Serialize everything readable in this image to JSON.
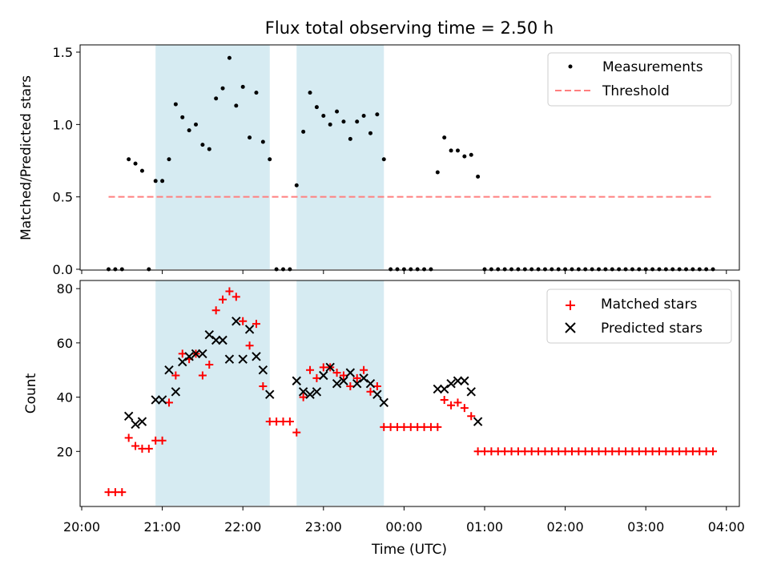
{
  "chart_data": [
    {
      "type": "scatter",
      "title": "Flux total observing time = 2.50 h",
      "xlabel": "",
      "ylabel": "Matched/Predicted stars",
      "xlim": [
        "20:00",
        "04:05"
      ],
      "ylim": [
        0,
        1.55
      ],
      "yticks": [
        0.0,
        0.5,
        1.0,
        1.5
      ],
      "yticklabels": [
        "0.0",
        "0.5",
        "1.0",
        "1.5"
      ],
      "shaded_intervals": [
        [
          "20:55",
          "22:20"
        ],
        [
          "22:40",
          "23:45"
        ]
      ],
      "shade_color": "#add8e6",
      "legend_position": "top-right",
      "series": [
        {
          "name": "Measurements",
          "marker": "dot",
          "color": "#000000",
          "points": [
            [
              "20:20",
              0
            ],
            [
              "20:25",
              0
            ],
            [
              "20:30",
              0
            ],
            [
              "20:35",
              0.76
            ],
            [
              "20:40",
              0.73
            ],
            [
              "20:45",
              0.68
            ],
            [
              "20:50",
              0
            ],
            [
              "20:55",
              0.61
            ],
            [
              "21:00",
              0.61
            ],
            [
              "21:05",
              0.76
            ],
            [
              "21:10",
              1.14
            ],
            [
              "21:15",
              1.05
            ],
            [
              "21:20",
              0.96
            ],
            [
              "21:25",
              1.0
            ],
            [
              "21:30",
              0.86
            ],
            [
              "21:35",
              0.83
            ],
            [
              "21:40",
              1.18
            ],
            [
              "21:45",
              1.25
            ],
            [
              "21:50",
              1.46
            ],
            [
              "21:55",
              1.13
            ],
            [
              "22:00",
              1.26
            ],
            [
              "22:05",
              0.91
            ],
            [
              "22:10",
              1.22
            ],
            [
              "22:15",
              0.88
            ],
            [
              "22:20",
              0.76
            ],
            [
              "22:25",
              0
            ],
            [
              "22:30",
              0
            ],
            [
              "22:35",
              0
            ],
            [
              "22:40",
              0.58
            ],
            [
              "22:45",
              0.95
            ],
            [
              "22:50",
              1.22
            ],
            [
              "22:55",
              1.12
            ],
            [
              "23:00",
              1.06
            ],
            [
              "23:05",
              1.0
            ],
            [
              "23:10",
              1.09
            ],
            [
              "23:15",
              1.02
            ],
            [
              "23:20",
              0.9
            ],
            [
              "23:25",
              1.02
            ],
            [
              "23:30",
              1.06
            ],
            [
              "23:35",
              0.94
            ],
            [
              "23:40",
              1.07
            ],
            [
              "23:45",
              0.76
            ],
            [
              "23:50",
              0
            ],
            [
              "23:55",
              0
            ],
            [
              "00:00",
              0
            ],
            [
              "00:05",
              0
            ],
            [
              "00:10",
              0
            ],
            [
              "00:15",
              0
            ],
            [
              "00:20",
              0
            ],
            [
              "00:25",
              0.67
            ],
            [
              "00:30",
              0.91
            ],
            [
              "00:35",
              0.82
            ],
            [
              "00:40",
              0.82
            ],
            [
              "00:45",
              0.78
            ],
            [
              "00:50",
              0.79
            ],
            [
              "00:55",
              0.64
            ],
            [
              "01:00",
              0
            ],
            [
              "01:05",
              0
            ],
            [
              "01:10",
              0
            ],
            [
              "01:15",
              0
            ],
            [
              "01:20",
              0
            ],
            [
              "01:25",
              0
            ],
            [
              "01:30",
              0
            ],
            [
              "01:35",
              0
            ],
            [
              "01:40",
              0
            ],
            [
              "01:45",
              0
            ],
            [
              "01:50",
              0
            ],
            [
              "01:55",
              0
            ],
            [
              "02:00",
              0
            ],
            [
              "02:05",
              0
            ],
            [
              "02:10",
              0
            ],
            [
              "02:15",
              0
            ],
            [
              "02:20",
              0
            ],
            [
              "02:25",
              0
            ],
            [
              "02:30",
              0
            ],
            [
              "02:35",
              0
            ],
            [
              "02:40",
              0
            ],
            [
              "02:45",
              0
            ],
            [
              "02:50",
              0
            ],
            [
              "02:55",
              0
            ],
            [
              "03:00",
              0
            ],
            [
              "03:05",
              0
            ],
            [
              "03:10",
              0
            ],
            [
              "03:15",
              0
            ],
            [
              "03:20",
              0
            ],
            [
              "03:25",
              0
            ],
            [
              "03:30",
              0
            ],
            [
              "03:35",
              0
            ],
            [
              "03:40",
              0
            ],
            [
              "03:45",
              0
            ],
            [
              "03:50",
              0
            ]
          ]
        },
        {
          "name": "Threshold",
          "marker": "dashed-line",
          "color": "#ff7f7f",
          "points": [
            [
              "20:20",
              0.5
            ],
            [
              "03:50",
              0.5
            ]
          ]
        }
      ]
    },
    {
      "type": "scatter",
      "title": "",
      "xlabel": "Time (UTC)",
      "ylabel": "Count",
      "xlim": [
        "20:00",
        "04:05"
      ],
      "ylim": [
        0,
        83
      ],
      "xticklabels": [
        "20:00",
        "21:00",
        "22:00",
        "23:00",
        "00:00",
        "01:00",
        "02:00",
        "03:00",
        "04:00"
      ],
      "yticks": [
        20,
        40,
        60,
        80
      ],
      "yticklabels": [
        "20",
        "40",
        "60",
        "80"
      ],
      "shaded_intervals": [
        [
          "20:55",
          "22:20"
        ],
        [
          "22:40",
          "23:45"
        ]
      ],
      "shade_color": "#add8e6",
      "legend_position": "top-right",
      "series": [
        {
          "name": "Matched stars",
          "marker": "plus",
          "color": "#ff0000",
          "points": [
            [
              "20:20",
              5
            ],
            [
              "20:25",
              5
            ],
            [
              "20:30",
              5
            ],
            [
              "20:35",
              25
            ],
            [
              "20:40",
              22
            ],
            [
              "20:45",
              21
            ],
            [
              "20:50",
              21
            ],
            [
              "20:55",
              24
            ],
            [
              "21:00",
              24
            ],
            [
              "21:05",
              38
            ],
            [
              "21:10",
              48
            ],
            [
              "21:15",
              56
            ],
            [
              "21:20",
              54
            ],
            [
              "21:25",
              56
            ],
            [
              "21:30",
              48
            ],
            [
              "21:35",
              52
            ],
            [
              "21:40",
              72
            ],
            [
              "21:45",
              76
            ],
            [
              "21:50",
              79
            ],
            [
              "21:55",
              77
            ],
            [
              "22:00",
              68
            ],
            [
              "22:05",
              59
            ],
            [
              "22:10",
              67
            ],
            [
              "22:15",
              44
            ],
            [
              "22:20",
              31
            ],
            [
              "22:25",
              31
            ],
            [
              "22:30",
              31
            ],
            [
              "22:35",
              31
            ],
            [
              "22:40",
              27
            ],
            [
              "22:45",
              40
            ],
            [
              "22:50",
              50
            ],
            [
              "22:55",
              47
            ],
            [
              "23:00",
              51
            ],
            [
              "23:05",
              51
            ],
            [
              "23:10",
              49
            ],
            [
              "23:15",
              48
            ],
            [
              "23:20",
              44
            ],
            [
              "23:25",
              47
            ],
            [
              "23:30",
              50
            ],
            [
              "23:35",
              42
            ],
            [
              "23:40",
              44
            ],
            [
              "23:45",
              29
            ],
            [
              "23:50",
              29
            ],
            [
              "23:55",
              29
            ],
            [
              "00:00",
              29
            ],
            [
              "00:05",
              29
            ],
            [
              "00:10",
              29
            ],
            [
              "00:15",
              29
            ],
            [
              "00:20",
              29
            ],
            [
              "00:25",
              29
            ],
            [
              "00:30",
              39
            ],
            [
              "00:35",
              37
            ],
            [
              "00:40",
              38
            ],
            [
              "00:45",
              36
            ],
            [
              "00:50",
              33
            ],
            [
              "00:55",
              20
            ],
            [
              "01:00",
              20
            ],
            [
              "01:05",
              20
            ],
            [
              "01:10",
              20
            ],
            [
              "01:15",
              20
            ],
            [
              "01:20",
              20
            ],
            [
              "01:25",
              20
            ],
            [
              "01:30",
              20
            ],
            [
              "01:35",
              20
            ],
            [
              "01:40",
              20
            ],
            [
              "01:45",
              20
            ],
            [
              "01:50",
              20
            ],
            [
              "01:55",
              20
            ],
            [
              "02:00",
              20
            ],
            [
              "02:05",
              20
            ],
            [
              "02:10",
              20
            ],
            [
              "02:15",
              20
            ],
            [
              "02:20",
              20
            ],
            [
              "02:25",
              20
            ],
            [
              "02:30",
              20
            ],
            [
              "02:35",
              20
            ],
            [
              "02:40",
              20
            ],
            [
              "02:45",
              20
            ],
            [
              "02:50",
              20
            ],
            [
              "02:55",
              20
            ],
            [
              "03:00",
              20
            ],
            [
              "03:05",
              20
            ],
            [
              "03:10",
              20
            ],
            [
              "03:15",
              20
            ],
            [
              "03:20",
              20
            ],
            [
              "03:25",
              20
            ],
            [
              "03:30",
              20
            ],
            [
              "03:35",
              20
            ],
            [
              "03:40",
              20
            ],
            [
              "03:45",
              20
            ],
            [
              "03:50",
              20
            ]
          ]
        },
        {
          "name": "Predicted stars",
          "marker": "x",
          "color": "#000000",
          "points": [
            [
              "20:35",
              33
            ],
            [
              "20:40",
              30
            ],
            [
              "20:45",
              31
            ],
            [
              "20:55",
              39
            ],
            [
              "21:00",
              39
            ],
            [
              "21:05",
              50
            ],
            [
              "21:10",
              42
            ],
            [
              "21:15",
              53
            ],
            [
              "21:20",
              55
            ],
            [
              "21:25",
              56
            ],
            [
              "21:30",
              56
            ],
            [
              "21:35",
              63
            ],
            [
              "21:40",
              61
            ],
            [
              "21:45",
              61
            ],
            [
              "21:50",
              54
            ],
            [
              "21:55",
              68
            ],
            [
              "22:00",
              54
            ],
            [
              "22:05",
              65
            ],
            [
              "22:10",
              55
            ],
            [
              "22:15",
              50
            ],
            [
              "22:20",
              41
            ],
            [
              "22:40",
              46
            ],
            [
              "22:45",
              42
            ],
            [
              "22:50",
              41
            ],
            [
              "22:55",
              42
            ],
            [
              "23:00",
              48
            ],
            [
              "23:05",
              51
            ],
            [
              "23:10",
              45
            ],
            [
              "23:15",
              46
            ],
            [
              "23:20",
              49
            ],
            [
              "23:25",
              45
            ],
            [
              "23:30",
              47
            ],
            [
              "23:35",
              45
            ],
            [
              "23:40",
              41
            ],
            [
              "23:45",
              38
            ],
            [
              "00:25",
              43
            ],
            [
              "00:30",
              43
            ],
            [
              "00:35",
              45
            ],
            [
              "00:40",
              46
            ],
            [
              "00:45",
              46
            ],
            [
              "00:50",
              42
            ],
            [
              "00:55",
              31
            ]
          ]
        }
      ]
    }
  ]
}
